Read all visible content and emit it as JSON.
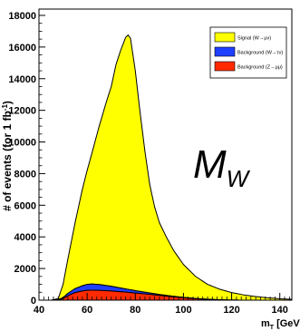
{
  "chart_data": {
    "type": "area",
    "title": "",
    "xlabel": "m",
    "xlabel_sub": "T",
    "xlabel_unit": "[GeV]",
    "ylabel": "# of events  (for 1 fb",
    "ylabel_sup": "-1",
    "ylabel_close": ")",
    "xlim": [
      40,
      145
    ],
    "ylim": [
      0,
      18400
    ],
    "xticks": [
      40,
      60,
      80,
      100,
      120,
      140
    ],
    "yticks": [
      0,
      2000,
      4000,
      6000,
      8000,
      10000,
      12000,
      14000,
      16000,
      18000
    ],
    "grid": false,
    "legend_position": "top-right",
    "stacked": true,
    "series": [
      {
        "name": "Background (Z→μμ)",
        "color": "#ff2a00",
        "x": [
          40,
          45,
          48,
          50,
          52,
          55,
          58,
          60,
          62,
          65,
          70,
          75,
          80,
          85,
          90,
          95,
          100,
          105,
          110,
          115,
          120,
          130,
          145
        ],
        "values": [
          0,
          0,
          20,
          100,
          280,
          480,
          580,
          620,
          630,
          620,
          580,
          520,
          450,
          380,
          300,
          220,
          150,
          90,
          50,
          20,
          5,
          0,
          0
        ]
      },
      {
        "name": "Background (W→τν)",
        "color": "#1f3fff",
        "x": [
          40,
          45,
          48,
          50,
          52,
          55,
          58,
          60,
          62,
          65,
          70,
          75,
          80,
          85,
          90,
          95,
          100,
          105,
          110,
          115,
          120,
          130,
          145
        ],
        "values": [
          0,
          0,
          15,
          60,
          150,
          250,
          330,
          380,
          390,
          370,
          300,
          220,
          150,
          100,
          60,
          40,
          25,
          15,
          10,
          5,
          0,
          0,
          0
        ]
      },
      {
        "name": "Signal (W→μν)",
        "color": "#ffff00",
        "x": [
          40,
          45,
          48,
          50,
          52,
          55,
          58,
          60,
          62,
          65,
          68,
          70,
          72,
          74,
          76,
          77,
          78,
          80,
          82,
          84,
          86,
          88,
          90,
          93,
          96,
          100,
          105,
          110,
          115,
          120,
          125,
          130,
          135,
          140,
          145
        ],
        "values": [
          0,
          0,
          65,
          840,
          2170,
          4170,
          6090,
          7200,
          8280,
          10010,
          11620,
          12620,
          14080,
          15060,
          15900,
          16080,
          15900,
          13900,
          11300,
          8900,
          6850,
          5500,
          4540,
          3660,
          2880,
          2080,
          1400,
          940,
          670,
          475,
          330,
          230,
          150,
          90,
          50
        ]
      }
    ],
    "annotation": "M",
    "annotation_sub": "W"
  }
}
